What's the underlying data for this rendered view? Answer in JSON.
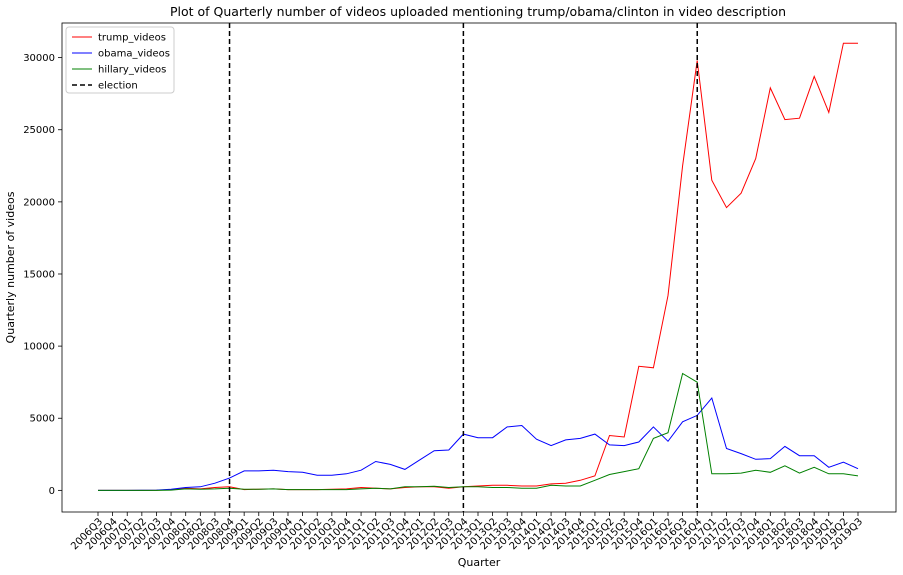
{
  "chart_data": {
    "type": "line",
    "title": "Plot of Quarterly number of videos uploaded mentioning trump/obama/clinton in video description",
    "xlabel": "Quarter",
    "ylabel": "Quarterly number of videos",
    "ylim": [
      -1500,
      32400
    ],
    "yticks": [
      0,
      5000,
      10000,
      15000,
      20000,
      25000,
      30000
    ],
    "ytick_labels": [
      "0",
      "5000",
      "10000",
      "15000",
      "20000",
      "25000",
      "30000"
    ],
    "legend_position": "upper-left",
    "categories": [
      "2006Q3",
      "2006Q4",
      "2007Q1",
      "2007Q2",
      "2007Q3",
      "2007Q4",
      "2008Q1",
      "2008Q2",
      "2008Q3",
      "2008Q4",
      "2009Q1",
      "2009Q2",
      "2009Q3",
      "2009Q4",
      "2010Q1",
      "2010Q2",
      "2010Q3",
      "2010Q4",
      "2011Q1",
      "2011Q2",
      "2011Q3",
      "2011Q4",
      "2012Q1",
      "2012Q2",
      "2012Q3",
      "2012Q4",
      "2013Q1",
      "2013Q2",
      "2013Q3",
      "2013Q4",
      "2014Q1",
      "2014Q2",
      "2014Q3",
      "2014Q4",
      "2015Q1",
      "2015Q2",
      "2015Q3",
      "2015Q4",
      "2016Q1",
      "2016Q2",
      "2016Q3",
      "2016Q4",
      "2017Q1",
      "2017Q2",
      "2017Q3",
      "2017Q4",
      "2018Q1",
      "2018Q2",
      "2018Q3",
      "2018Q4",
      "2019Q1",
      "2019Q2",
      "2019Q3"
    ],
    "series": [
      {
        "name": "trump_videos",
        "color": "#ff0000",
        "style": "solid",
        "values": [
          0,
          0,
          0,
          0,
          10,
          50,
          150,
          100,
          200,
          250,
          50,
          80,
          100,
          50,
          50,
          50,
          80,
          100,
          200,
          150,
          100,
          200,
          250,
          250,
          150,
          250,
          300,
          350,
          350,
          300,
          300,
          450,
          500,
          700,
          1000,
          3800,
          3700,
          8600,
          8500,
          13500,
          22500,
          29800,
          21500,
          19600,
          20600,
          23000,
          27900,
          25700,
          25800,
          28700,
          26200,
          31000,
          31000
        ]
      },
      {
        "name": "obama_videos",
        "color": "#0000ff",
        "style": "solid",
        "values": [
          0,
          0,
          0,
          10,
          20,
          80,
          200,
          250,
          500,
          850,
          1350,
          1350,
          1400,
          1300,
          1250,
          1050,
          1050,
          1150,
          1400,
          2000,
          1800,
          1450,
          2100,
          2750,
          2800,
          3900,
          3650,
          3650,
          4400,
          4500,
          3550,
          3100,
          3500,
          3600,
          3900,
          3150,
          3100,
          3350,
          4400,
          3400,
          4750,
          5200,
          6400,
          2900,
          2550,
          2150,
          2200,
          3050,
          2400,
          2400,
          1600,
          1950,
          1500
        ]
      },
      {
        "name": "hillary_videos",
        "color": "#008000",
        "style": "solid",
        "values": [
          0,
          0,
          0,
          0,
          0,
          20,
          100,
          80,
          100,
          150,
          80,
          80,
          100,
          50,
          50,
          50,
          50,
          50,
          100,
          150,
          100,
          250,
          250,
          280,
          200,
          250,
          250,
          200,
          200,
          150,
          150,
          350,
          300,
          300,
          700,
          1100,
          1300,
          1500,
          3600,
          4000,
          8100,
          7500,
          1150,
          1150,
          1200,
          1400,
          1250,
          1700,
          1200,
          1600,
          1150,
          1150,
          1000
        ]
      },
      {
        "name": "election",
        "color": "#000000",
        "style": "dashed",
        "vlines": [
          "2008Q4",
          "2012Q4",
          "2016Q4"
        ]
      }
    ]
  }
}
